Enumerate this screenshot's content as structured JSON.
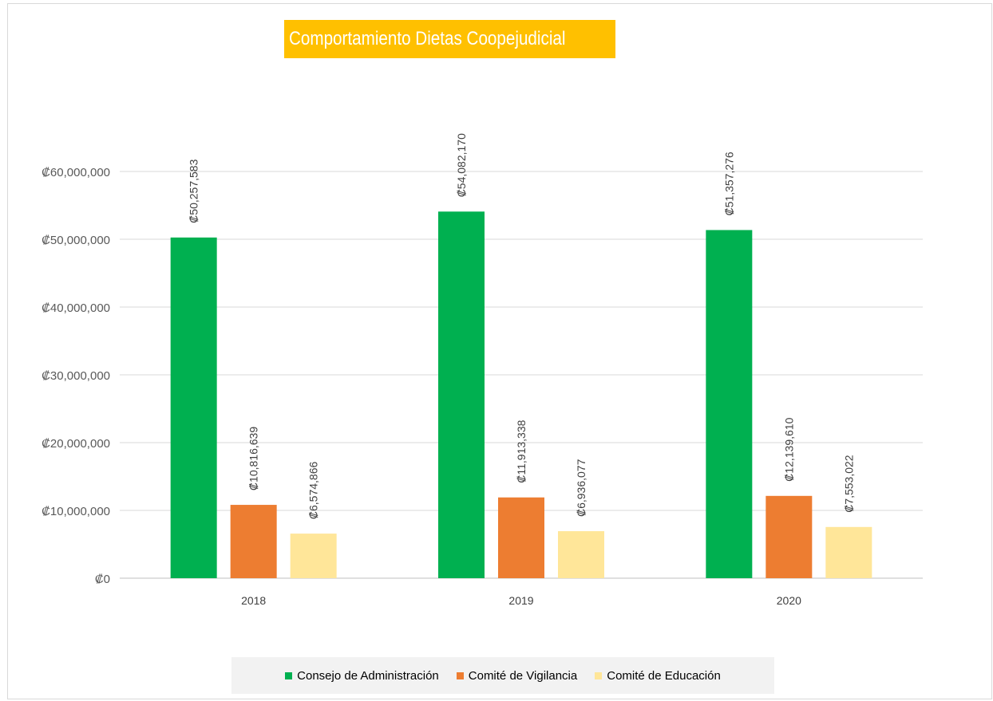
{
  "chart_data": {
    "type": "bar",
    "title": "Comportamiento Dietas Coopejudicial",
    "xlabel": "",
    "ylabel": "",
    "categories": [
      "2018",
      "2019",
      "2020"
    ],
    "series": [
      {
        "name": "Consejo de Administración",
        "values": [
          50257583,
          54082170,
          51357276
        ],
        "labels": [
          "₡50,257,583",
          "₡54,082,170",
          "₡51,357,276"
        ],
        "color": "#00b050"
      },
      {
        "name": "Comité de Vigilancia",
        "values": [
          10816639,
          11913338,
          12139610
        ],
        "labels": [
          "₡10,816,639",
          "₡11,913,338",
          "₡12,139,610"
        ],
        "color": "#ed7d31"
      },
      {
        "name": "Comité de Educación",
        "values": [
          6574866,
          6936077,
          7553022
        ],
        "labels": [
          "₡6,574,866",
          "₡6,936,077",
          "₡7,553,022"
        ],
        "color": "#ffe699"
      }
    ],
    "ylim": [
      0,
      60000000
    ],
    "yticks": [
      0,
      10000000,
      20000000,
      30000000,
      40000000,
      50000000,
      60000000
    ],
    "ytick_labels": [
      "₡0",
      "₡10,000,000",
      "₡20,000,000",
      "₡30,000,000",
      "₡40,000,000",
      "₡50,000,000",
      "₡60,000,000"
    ],
    "grid": true,
    "legend_position": "bottom",
    "data_labels": "rotated-vertical"
  }
}
